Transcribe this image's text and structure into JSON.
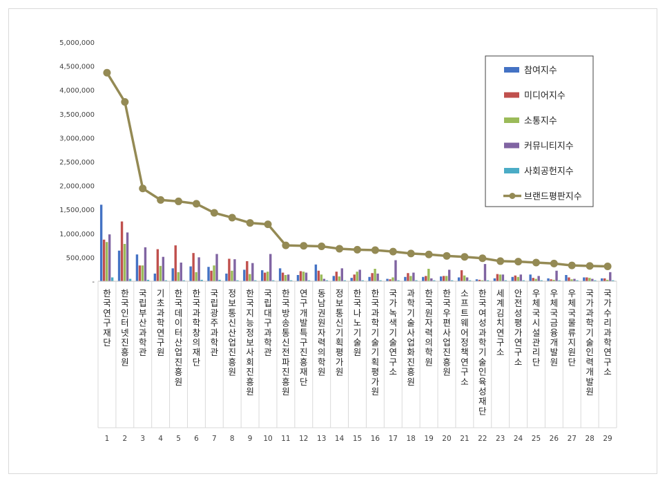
{
  "chart_data": {
    "type": "bar",
    "categories": [
      "한국연구재단",
      "한국인터넷진흥원",
      "국립부산과학관",
      "기초과학연구원",
      "한국데이터산업진흥원",
      "한국과학창의재단",
      "국립광주과학관",
      "정보통신산업진흥원",
      "한국지능정보사회진흥원",
      "국립대구과학관",
      "한국방송통신전파진흥원",
      "연구개발특구진흥재단",
      "동남권원자력의학원",
      "정보통신기획평가원",
      "한국나노기술원",
      "한국과학기술기획평가원",
      "국가녹색기술연구소",
      "과학기술사업화진흥원",
      "한국원자력의학원",
      "한국우편사업진흥원",
      "소프트웨어정책연구소",
      "한국여성과학기술인육성재단",
      "세계김치연구소",
      "안전성평가연구소",
      "우체국시설관리단",
      "우체국금융개발원",
      "우체국물류지원단",
      "국가과학기술인력개발원",
      "국가수리과학연구소"
    ],
    "x_ranks": [
      "1",
      "2",
      "3",
      "4",
      "5",
      "6",
      "7",
      "8",
      "9",
      "10",
      "11",
      "12",
      "13",
      "14",
      "15",
      "16",
      "17",
      "18",
      "19",
      "20",
      "21",
      "22",
      "23",
      "24",
      "25",
      "26",
      "27",
      "28",
      "29"
    ],
    "series": [
      {
        "name": "참여지수",
        "color": "#4472c4",
        "values": [
          1600000,
          640000,
          560000,
          160000,
          270000,
          310000,
          300000,
          160000,
          240000,
          230000,
          270000,
          130000,
          350000,
          110000,
          70000,
          90000,
          50000,
          90000,
          90000,
          100000,
          80000,
          40000,
          60000,
          90000,
          140000,
          60000,
          130000,
          80000,
          60000
        ]
      },
      {
        "name": "미디어지수",
        "color": "#c0504d",
        "values": [
          870000,
          1250000,
          330000,
          670000,
          750000,
          590000,
          220000,
          470000,
          420000,
          180000,
          180000,
          210000,
          220000,
          200000,
          140000,
          170000,
          40000,
          170000,
          110000,
          110000,
          230000,
          30000,
          150000,
          120000,
          70000,
          40000,
          80000,
          80000,
          60000
        ]
      },
      {
        "name": "소통지수",
        "color": "#9bbb59",
        "values": [
          820000,
          780000,
          330000,
          320000,
          190000,
          190000,
          330000,
          220000,
          150000,
          200000,
          130000,
          200000,
          140000,
          100000,
          200000,
          260000,
          80000,
          110000,
          260000,
          110000,
          120000,
          20000,
          140000,
          90000,
          50000,
          30000,
          40000,
          70000,
          30000
        ]
      },
      {
        "name": "커뮤니티지수",
        "color": "#8064a2",
        "values": [
          980000,
          1020000,
          710000,
          510000,
          390000,
          500000,
          570000,
          460000,
          380000,
          570000,
          140000,
          180000,
          50000,
          270000,
          240000,
          160000,
          440000,
          180000,
          60000,
          240000,
          80000,
          360000,
          140000,
          140000,
          110000,
          220000,
          50000,
          50000,
          190000
        ]
      },
      {
        "name": "사회공헌지수",
        "color": "#4bacc6",
        "values": [
          80000,
          50000,
          30000,
          20000,
          20000,
          30000,
          30000,
          20000,
          20000,
          20000,
          20000,
          20000,
          20000,
          20000,
          20000,
          20000,
          20000,
          20000,
          20000,
          20000,
          20000,
          20000,
          20000,
          20000,
          20000,
          20000,
          20000,
          20000,
          20000
        ]
      },
      {
        "name": "브랜드평판지수",
        "color": "#948a54",
        "type": "line",
        "values": [
          4360000,
          3750000,
          1940000,
          1700000,
          1670000,
          1620000,
          1430000,
          1330000,
          1220000,
          1190000,
          750000,
          740000,
          730000,
          680000,
          660000,
          650000,
          620000,
          580000,
          560000,
          530000,
          510000,
          480000,
          420000,
          410000,
          390000,
          370000,
          330000,
          320000,
          310000
        ]
      }
    ],
    "y_ticks": [
      "-",
      "500,000",
      "1,000,000",
      "1,500,000",
      "2,000,000",
      "2,500,000",
      "3,000,000",
      "3,500,000",
      "4,000,000",
      "4,500,000",
      "5,000,000"
    ],
    "ylim": [
      0,
      5000000
    ],
    "legend_position": "top-right"
  }
}
